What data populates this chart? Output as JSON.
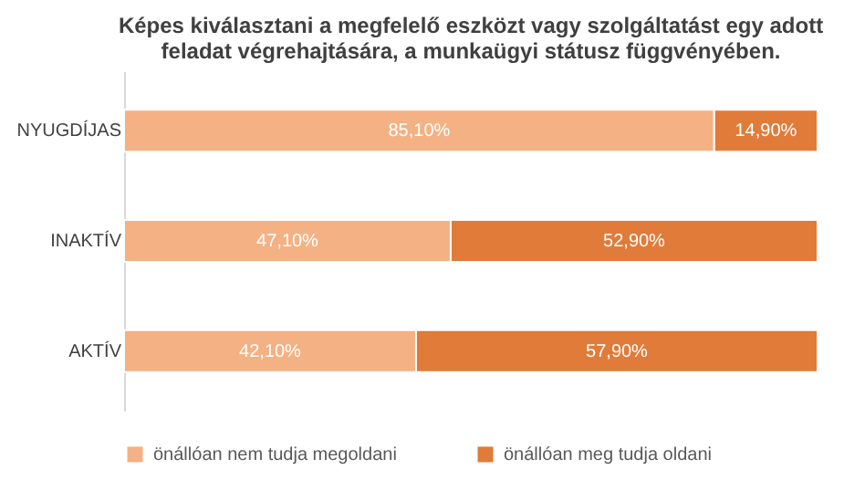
{
  "chart_data": {
    "type": "bar",
    "orientation": "horizontal",
    "stacked": true,
    "title": [
      "Képes kiválasztani a megfelelő eszközt vagy szolgáltatást egy adott",
      "feladat végrehajtására, a munkaügyi státusz függvényében."
    ],
    "categories": [
      "NYUGDÍJAS",
      "INAKTÍV",
      "AKTÍV"
    ],
    "series": [
      {
        "name": "önállóan nem tudja megoldani",
        "color": "#f4b183",
        "values": [
          85.1,
          47.1,
          42.1
        ],
        "value_labels": [
          "85,10%",
          "47,10%",
          "42,10%"
        ]
      },
      {
        "name": "önállóan meg tudja oldani",
        "color": "#e07b39",
        "values": [
          14.9,
          52.9,
          57.9
        ],
        "value_labels": [
          "14,90%",
          "52,90%",
          "57,90%"
        ]
      }
    ],
    "xlim": [
      0,
      100
    ],
    "tick_labels": "y",
    "legend": "bottom"
  }
}
